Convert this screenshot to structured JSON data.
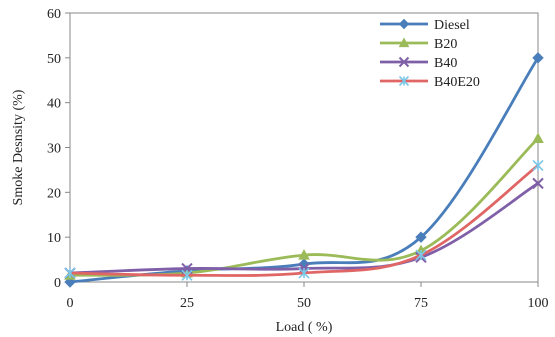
{
  "chart_data": {
    "type": "line",
    "title": "",
    "xlabel": "Load ( %)",
    "ylabel": "Smoke Desnsity (%)",
    "x": [
      0,
      25,
      50,
      75,
      100
    ],
    "x_tick_labels": [
      "0",
      "25",
      "50",
      "75",
      "100"
    ],
    "y_tick_labels": [
      "0",
      "10",
      "20",
      "30",
      "40",
      "50",
      "60"
    ],
    "xlim": [
      0,
      100
    ],
    "ylim": [
      0,
      60
    ],
    "grid": false,
    "legend_position": "top-right",
    "series": [
      {
        "name": "Diesel",
        "marker": "diamond",
        "color": "#4a7ebb",
        "values": [
          0,
          2.5,
          4,
          10,
          50
        ]
      },
      {
        "name": "B20",
        "marker": "triangle",
        "color": "#9bbb59",
        "values": [
          1.5,
          2,
          6,
          7,
          32
        ]
      },
      {
        "name": "B40",
        "marker": "x",
        "color": "#7f60a8",
        "values": [
          2,
          3,
          3,
          5.5,
          22
        ]
      },
      {
        "name": "B40E20",
        "marker": "star",
        "color": "#e06666",
        "values": [
          2,
          1.5,
          2,
          6,
          26
        ]
      }
    ]
  }
}
